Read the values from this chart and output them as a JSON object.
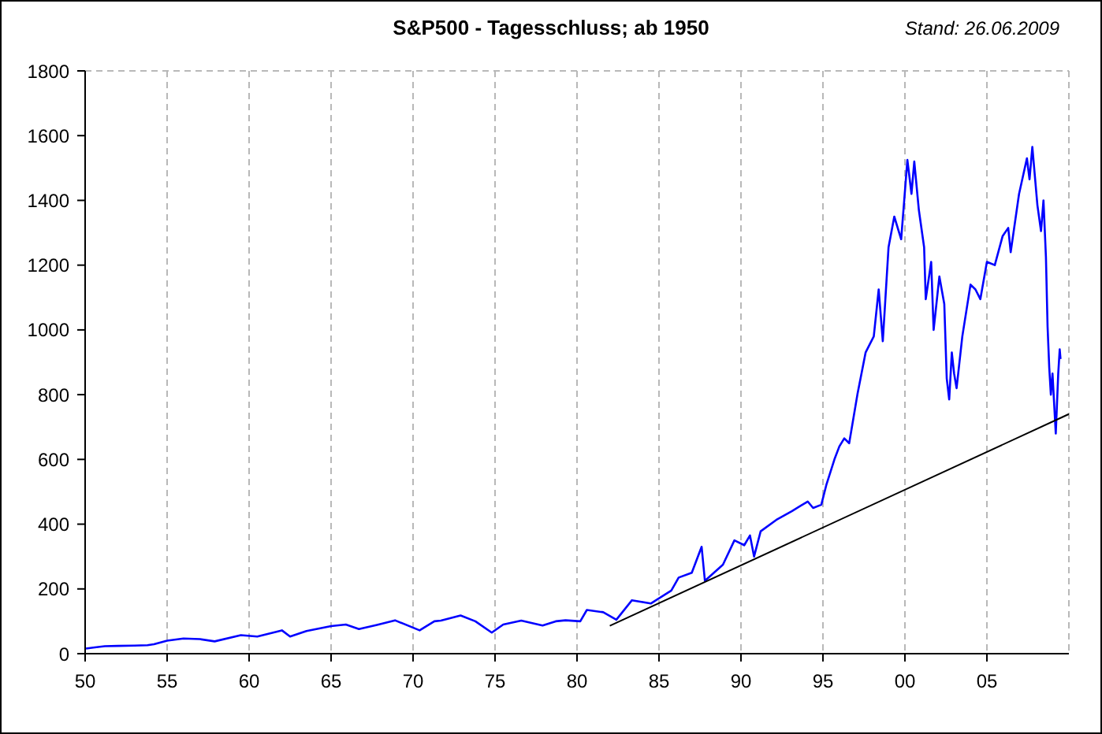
{
  "chart_data": {
    "type": "line",
    "title": "S&P500 - Tagesschluss; ab 1950",
    "annotations": [
      "Stand: 26.06.2009"
    ],
    "xlim": [
      1950,
      2010
    ],
    "xticks": [
      {
        "value": 1950,
        "label": "50"
      },
      {
        "value": 1955,
        "label": "55"
      },
      {
        "value": 1960,
        "label": "60"
      },
      {
        "value": 1965,
        "label": "65"
      },
      {
        "value": 1970,
        "label": "70"
      },
      {
        "value": 1975,
        "label": "75"
      },
      {
        "value": 1980,
        "label": "80"
      },
      {
        "value": 1985,
        "label": "85"
      },
      {
        "value": 1990,
        "label": "90"
      },
      {
        "value": 1995,
        "label": "95"
      },
      {
        "value": 2000,
        "label": "00"
      },
      {
        "value": 2005,
        "label": "05"
      }
    ],
    "ylim": [
      0,
      1800
    ],
    "yticks": [
      0,
      200,
      400,
      600,
      800,
      1000,
      1200,
      1400,
      1600,
      1800
    ],
    "grid": true,
    "series": [
      {
        "color": "#0000ff",
        "x": [
          1950.05,
          1950.5,
          1951.2,
          1952.0,
          1953.0,
          1953.8,
          1954.2,
          1955.0,
          1956.0,
          1957.0,
          1957.9,
          1959.5,
          1960.5,
          1962.0,
          1962.5,
          1963.5,
          1965.0,
          1965.9,
          1966.7,
          1967.8,
          1968.9,
          1970.4,
          1971.3,
          1971.7,
          1972.9,
          1973.8,
          1974.8,
          1975.5,
          1976.6,
          1977.9,
          1978.7,
          1979.3,
          1980.2,
          1980.6,
          1981.6,
          1982.4,
          1983.35,
          1984.5,
          1985.75,
          1986.2,
          1987.0,
          1987.6,
          1987.8,
          1988.9,
          1989.6,
          1990.2,
          1990.55,
          1990.8,
          1991.2,
          1992.15,
          1993.1,
          1994.07,
          1994.4,
          1994.9,
          1995.2,
          1995.7,
          1996.0,
          1996.3,
          1996.6,
          1997.1,
          1997.6,
          1998.1,
          1998.4,
          1998.65,
          1999.0,
          1999.35,
          1999.77,
          2000.15,
          2000.4,
          2000.57,
          2000.85,
          2001.17,
          2001.27,
          2001.6,
          2001.75,
          2002.1,
          2002.4,
          2002.55,
          2002.7,
          2002.86,
          2003.0,
          2003.15,
          2003.5,
          2004.0,
          2004.3,
          2004.6,
          2005.0,
          2005.48,
          2005.96,
          2006.3,
          2006.45,
          2006.96,
          2007.44,
          2007.6,
          2007.77,
          2008.08,
          2008.3,
          2008.45,
          2008.6,
          2008.7,
          2008.8,
          2008.9,
          2009.0,
          2009.2,
          2009.35,
          2009.44,
          2009.49
        ],
        "values": [
          16,
          19,
          23,
          24,
          25,
          26,
          29,
          40,
          47,
          45,
          38,
          57,
          53,
          72,
          53,
          70,
          85,
          90,
          76,
          89,
          103,
          72,
          100,
          102,
          118,
          100,
          65,
          90,
          102,
          87,
          100,
          103,
          100,
          135,
          128,
          105,
          165,
          155,
          195,
          235,
          250,
          330,
          225,
          275,
          350,
          335,
          365,
          300,
          378,
          413,
          440,
          470,
          450,
          460,
          520,
          600,
          640,
          665,
          650,
          800,
          930,
          980,
          1125,
          965,
          1255,
          1350,
          1280,
          1525,
          1420,
          1520,
          1370,
          1255,
          1095,
          1210,
          1000,
          1165,
          1080,
          850,
          785,
          930,
          865,
          820,
          980,
          1140,
          1125,
          1095,
          1210,
          1200,
          1290,
          1315,
          1240,
          1420,
          1530,
          1465,
          1565,
          1385,
          1305,
          1400,
          1225,
          1010,
          885,
          800,
          865,
          680,
          865,
          940,
          910
        ]
      },
      {
        "type": "line",
        "color": "#000000",
        "x": [
          1982,
          2010
        ],
        "values": [
          86,
          740
        ]
      }
    ]
  }
}
